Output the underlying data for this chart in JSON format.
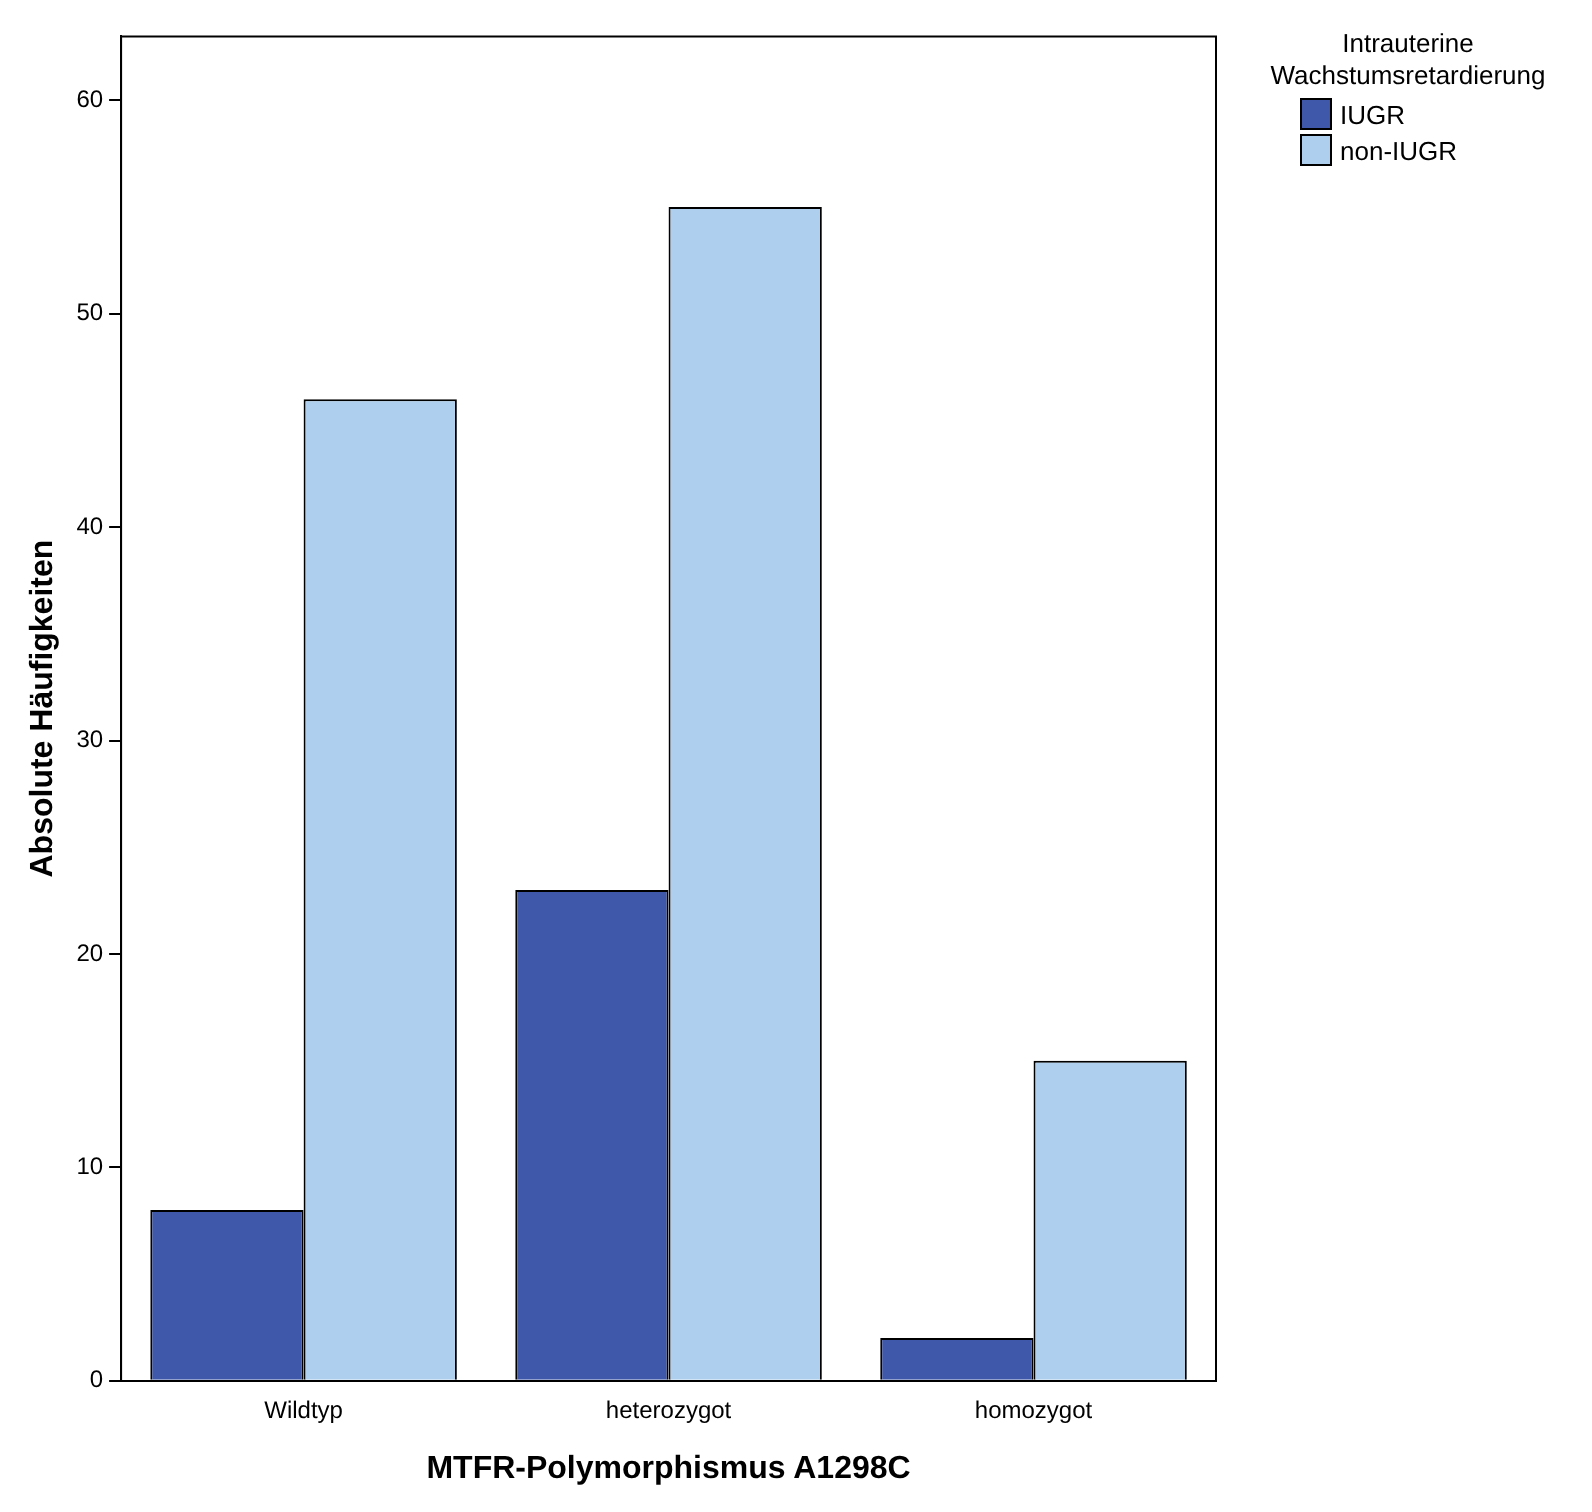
{
  "chart_data": {
    "type": "bar",
    "xlabel": "MTFR-Polymorphismus A1298C",
    "ylabel": "Absolute Häufigkeiten",
    "legend_title": "Intrauterine Wachstumsretardierung",
    "categories": [
      "Wildtyp",
      "heterozygot",
      "homozygot"
    ],
    "series": [
      {
        "name": "IUGR",
        "color": "#3f58aa",
        "values": [
          8,
          23,
          2
        ]
      },
      {
        "name": "non-IUGR",
        "color": "#aecfed",
        "values": [
          46,
          55,
          15
        ]
      }
    ],
    "ylim": [
      0,
      63
    ],
    "yticks": [
      0,
      10,
      20,
      30,
      40,
      50,
      60
    ],
    "grid": false,
    "legend": "top right"
  }
}
